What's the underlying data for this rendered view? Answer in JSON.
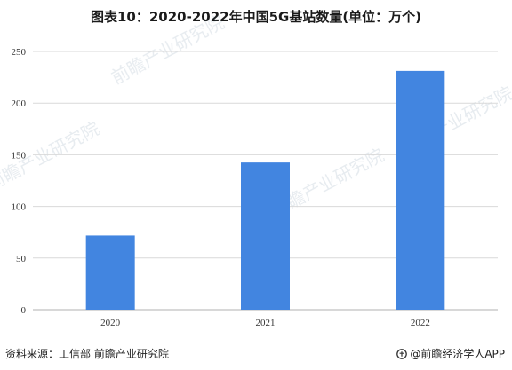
{
  "chart_data": {
    "type": "bar",
    "title": "图表10：2020-2022年中国5G基站数量(单位：万个)",
    "categories": [
      "2020",
      "2021",
      "2022"
    ],
    "values": [
      71.8,
      142.5,
      231.2
    ],
    "ylim": [
      0,
      250
    ],
    "yticks": [
      "0",
      "50",
      "100",
      "150",
      "200",
      "250"
    ],
    "grid": true,
    "bar_color": "#4285e0"
  },
  "footer": {
    "source": "资料来源：工信部 前瞻产业研究院",
    "brand": "@前瞻经济学人APP"
  },
  "watermark": {
    "text": "前瞻产业研究院"
  }
}
